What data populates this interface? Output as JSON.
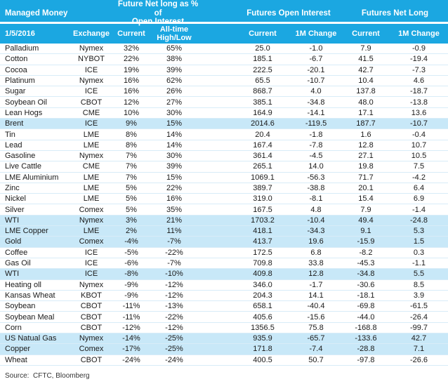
{
  "chart_data": {
    "type": "table",
    "title": "Managed Money",
    "date": "1/5/2016",
    "header_groups": {
      "pct_of_oi": "Future Net long as % of\nOpen Interest",
      "open_interest": "Futures Open Interest",
      "net_long": "Futures Net Long"
    },
    "columns": {
      "exchange": "Exchange",
      "pct_current": "Current",
      "pct_alltime": "All-time\nHigh/Low",
      "oi_current": "Current",
      "oi_change": "1M Change",
      "nl_current": "Current",
      "nl_change": "1M Change"
    },
    "rows": [
      {
        "commodity": "Palladium",
        "exchange": "Nymex",
        "pct_current": "32%",
        "pct_alltime": "65%",
        "oi_current": "25.0",
        "oi_change": "-1.0",
        "nl_current": "7.9",
        "nl_change": "-0.9",
        "highlight": false
      },
      {
        "commodity": "Cotton",
        "exchange": "NYBOT",
        "pct_current": "22%",
        "pct_alltime": "38%",
        "oi_current": "185.1",
        "oi_change": "-6.7",
        "nl_current": "41.5",
        "nl_change": "-19.4",
        "highlight": false
      },
      {
        "commodity": "Cocoa",
        "exchange": "ICE",
        "pct_current": "19%",
        "pct_alltime": "39%",
        "oi_current": "222.5",
        "oi_change": "-20.1",
        "nl_current": "42.7",
        "nl_change": "-7.3",
        "highlight": false
      },
      {
        "commodity": "Platinum",
        "exchange": "Nymex",
        "pct_current": "16%",
        "pct_alltime": "62%",
        "oi_current": "65.5",
        "oi_change": "-10.7",
        "nl_current": "10.4",
        "nl_change": "4.6",
        "highlight": false
      },
      {
        "commodity": "Sugar",
        "exchange": "ICE",
        "pct_current": "16%",
        "pct_alltime": "26%",
        "oi_current": "868.7",
        "oi_change": "4.0",
        "nl_current": "137.8",
        "nl_change": "-18.7",
        "highlight": false
      },
      {
        "commodity": "Soybean Oil",
        "exchange": "CBOT",
        "pct_current": "12%",
        "pct_alltime": "27%",
        "oi_current": "385.1",
        "oi_change": "-34.8",
        "nl_current": "48.0",
        "nl_change": "-13.8",
        "highlight": false
      },
      {
        "commodity": "Lean Hogs",
        "exchange": "CME",
        "pct_current": "10%",
        "pct_alltime": "30%",
        "oi_current": "164.9",
        "oi_change": "-14.1",
        "nl_current": "17.1",
        "nl_change": "13.6",
        "highlight": false
      },
      {
        "commodity": "Brent",
        "exchange": "ICE",
        "pct_current": "9%",
        "pct_alltime": "15%",
        "oi_current": "2014.6",
        "oi_change": "-119.5",
        "nl_current": "187.7",
        "nl_change": "-10.7",
        "highlight": true
      },
      {
        "commodity": "Tin",
        "exchange": "LME",
        "pct_current": "8%",
        "pct_alltime": "14%",
        "oi_current": "20.4",
        "oi_change": "-1.8",
        "nl_current": "1.6",
        "nl_change": "-0.4",
        "highlight": false
      },
      {
        "commodity": "Lead",
        "exchange": "LME",
        "pct_current": "8%",
        "pct_alltime": "14%",
        "oi_current": "167.4",
        "oi_change": "-7.8",
        "nl_current": "12.8",
        "nl_change": "10.7",
        "highlight": false
      },
      {
        "commodity": "Gasoline",
        "exchange": "Nymex",
        "pct_current": "7%",
        "pct_alltime": "30%",
        "oi_current": "361.4",
        "oi_change": "-4.5",
        "nl_current": "27.1",
        "nl_change": "10.5",
        "highlight": false
      },
      {
        "commodity": "Live Cattle",
        "exchange": "CME",
        "pct_current": "7%",
        "pct_alltime": "39%",
        "oi_current": "265.1",
        "oi_change": "14.0",
        "nl_current": "19.8",
        "nl_change": "7.5",
        "highlight": false
      },
      {
        "commodity": "LME Aluminium",
        "exchange": "LME",
        "pct_current": "7%",
        "pct_alltime": "15%",
        "oi_current": "1069.1",
        "oi_change": "-56.3",
        "nl_current": "71.7",
        "nl_change": "-4.2",
        "highlight": false
      },
      {
        "commodity": "Zinc",
        "exchange": "LME",
        "pct_current": "5%",
        "pct_alltime": "22%",
        "oi_current": "389.7",
        "oi_change": "-38.8",
        "nl_current": "20.1",
        "nl_change": "6.4",
        "highlight": false
      },
      {
        "commodity": "Nickel",
        "exchange": "LME",
        "pct_current": "5%",
        "pct_alltime": "16%",
        "oi_current": "319.0",
        "oi_change": "-8.1",
        "nl_current": "15.4",
        "nl_change": "6.9",
        "highlight": false
      },
      {
        "commodity": "Silver",
        "exchange": "Comex",
        "pct_current": "5%",
        "pct_alltime": "35%",
        "oi_current": "167.5",
        "oi_change": "4.8",
        "nl_current": "7.9",
        "nl_change": "-1.4",
        "highlight": false
      },
      {
        "commodity": "WTI",
        "exchange": "Nymex",
        "pct_current": "3%",
        "pct_alltime": "21%",
        "oi_current": "1703.2",
        "oi_change": "-10.4",
        "nl_current": "49.4",
        "nl_change": "-24.8",
        "highlight": true
      },
      {
        "commodity": "LME Copper",
        "exchange": "LME",
        "pct_current": "2%",
        "pct_alltime": "11%",
        "oi_current": "418.1",
        "oi_change": "-34.3",
        "nl_current": "9.1",
        "nl_change": "5.3",
        "highlight": true
      },
      {
        "commodity": "Gold",
        "exchange": "Comex",
        "pct_current": "-4%",
        "pct_alltime": "-7%",
        "oi_current": "413.7",
        "oi_change": "19.6",
        "nl_current": "-15.9",
        "nl_change": "1.5",
        "highlight": true
      },
      {
        "commodity": "Coffee",
        "exchange": "ICE",
        "pct_current": "-5%",
        "pct_alltime": "-22%",
        "oi_current": "172.5",
        "oi_change": "6.8",
        "nl_current": "-8.2",
        "nl_change": "0.3",
        "highlight": false
      },
      {
        "commodity": "Gas Oil",
        "exchange": "ICE",
        "pct_current": "-6%",
        "pct_alltime": "-7%",
        "oi_current": "709.8",
        "oi_change": "33.8",
        "nl_current": "-45.3",
        "nl_change": "-1.1",
        "highlight": false
      },
      {
        "commodity": "WTI",
        "exchange": "ICE",
        "pct_current": "-8%",
        "pct_alltime": "-10%",
        "oi_current": "409.8",
        "oi_change": "12.8",
        "nl_current": "-34.8",
        "nl_change": "5.5",
        "highlight": true
      },
      {
        "commodity": "Heating oll",
        "exchange": "Nymex",
        "pct_current": "-9%",
        "pct_alltime": "-12%",
        "oi_current": "346.0",
        "oi_change": "-1.7",
        "nl_current": "-30.6",
        "nl_change": "8.5",
        "highlight": false
      },
      {
        "commodity": "Kansas Wheat",
        "exchange": "KBOT",
        "pct_current": "-9%",
        "pct_alltime": "-12%",
        "oi_current": "204.3",
        "oi_change": "14.1",
        "nl_current": "-18.1",
        "nl_change": "3.9",
        "highlight": false
      },
      {
        "commodity": "Soybean",
        "exchange": "CBOT",
        "pct_current": "-11%",
        "pct_alltime": "-13%",
        "oi_current": "658.1",
        "oi_change": "-40.4",
        "nl_current": "-69.8",
        "nl_change": "-61.5",
        "highlight": false
      },
      {
        "commodity": "Soybean Meal",
        "exchange": "CBOT",
        "pct_current": "-11%",
        "pct_alltime": "-22%",
        "oi_current": "405.6",
        "oi_change": "-15.6",
        "nl_current": "-44.0",
        "nl_change": "-26.4",
        "highlight": false
      },
      {
        "commodity": "Corn",
        "exchange": "CBOT",
        "pct_current": "-12%",
        "pct_alltime": "-12%",
        "oi_current": "1356.5",
        "oi_change": "75.8",
        "nl_current": "-168.8",
        "nl_change": "-99.7",
        "highlight": false
      },
      {
        "commodity": "US Natual Gas",
        "exchange": "Nymex",
        "pct_current": "-14%",
        "pct_alltime": "-25%",
        "oi_current": "935.9",
        "oi_change": "-65.7",
        "nl_current": "-133.6",
        "nl_change": "42.7",
        "highlight": true
      },
      {
        "commodity": "Copper",
        "exchange": "Comex",
        "pct_current": "-17%",
        "pct_alltime": "-25%",
        "oi_current": "171.8",
        "oi_change": "-7.4",
        "nl_current": "-28.8",
        "nl_change": "7.1",
        "highlight": true
      },
      {
        "commodity": "Wheat",
        "exchange": "CBOT",
        "pct_current": "-24%",
        "pct_alltime": "-24%",
        "oi_current": "400.5",
        "oi_change": "50.7",
        "nl_current": "-97.8",
        "nl_change": "-26.6",
        "highlight": false
      }
    ],
    "colors": {
      "header_bg": "#1ba7e1",
      "header_text": "#ffffff",
      "highlight_row_bg": "#c8e8f8",
      "row_border": "#d8ecf8",
      "body_text": "#1a1a1a"
    }
  },
  "footer": {
    "source": "Source:  CFTC, Bloomberg"
  }
}
